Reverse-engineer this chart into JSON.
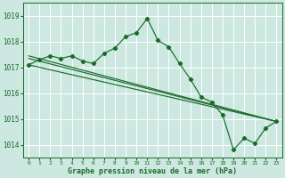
{
  "bg_color": "#cce8e0",
  "grid_color": "#ffffff",
  "line_color": "#1a6b2a",
  "marker_color": "#1a6b2a",
  "xlabel": "Graphe pression niveau de la mer (hPa)",
  "xlabel_fontsize": 6.0,
  "xlim": [
    -0.5,
    23.5
  ],
  "ylim": [
    1013.5,
    1019.5
  ],
  "yticks": [
    1014,
    1015,
    1016,
    1017,
    1018,
    1019
  ],
  "xticks": [
    0,
    1,
    2,
    3,
    4,
    5,
    6,
    7,
    8,
    9,
    10,
    11,
    12,
    13,
    14,
    15,
    16,
    17,
    18,
    19,
    20,
    21,
    22,
    23
  ],
  "series_main": {
    "x": [
      0,
      1,
      2,
      3,
      4,
      5,
      6,
      7,
      8,
      9,
      10,
      11,
      12,
      13,
      14,
      15,
      16,
      17,
      18,
      19,
      20,
      21,
      22,
      23
    ],
    "y": [
      1017.1,
      1017.3,
      1017.45,
      1017.35,
      1017.45,
      1017.25,
      1017.15,
      1017.55,
      1017.75,
      1018.2,
      1018.35,
      1018.9,
      1018.05,
      1017.8,
      1017.15,
      1016.55,
      1015.85,
      1015.65,
      1015.15,
      1013.8,
      1014.25,
      1014.05,
      1014.65,
      1014.9
    ]
  },
  "series_line1": {
    "x": [
      0,
      23
    ],
    "y": [
      1017.1,
      1014.9
    ]
  },
  "series_line2": {
    "x": [
      0,
      23
    ],
    "y": [
      1017.35,
      1014.9
    ]
  },
  "series_line3": {
    "x": [
      0,
      23
    ],
    "y": [
      1017.45,
      1014.9
    ]
  }
}
